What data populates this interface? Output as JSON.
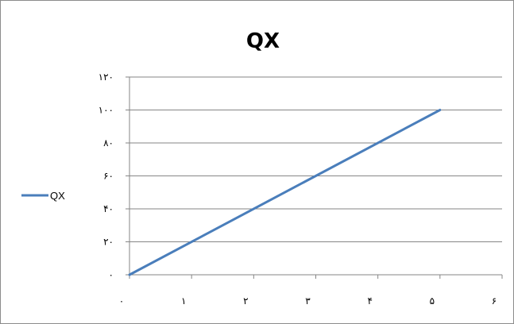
{
  "chart_data": {
    "type": "line",
    "title": "QX",
    "xlabel": "",
    "ylabel": "",
    "x": [
      0,
      5
    ],
    "series": [
      {
        "name": "QX",
        "values": [
          0,
          100
        ],
        "color": "#4a7ebb"
      }
    ],
    "xlim": [
      0,
      6
    ],
    "ylim": [
      0,
      120
    ],
    "x_ticks": [
      0,
      1,
      2,
      3,
      4,
      5,
      6
    ],
    "x_tick_labels": [
      "٠",
      "١",
      "٢",
      "٣",
      "۴",
      "۵",
      "۶"
    ],
    "y_ticks": [
      0,
      20,
      40,
      60,
      80,
      100,
      120
    ],
    "y_tick_labels": [
      "٠",
      "٢٠",
      "۴٠",
      "۶٠",
      "٨٠",
      "١٠٠",
      "١٢٠"
    ],
    "grid": {
      "horizontal": true,
      "vertical": false
    },
    "legend_position": "left"
  }
}
